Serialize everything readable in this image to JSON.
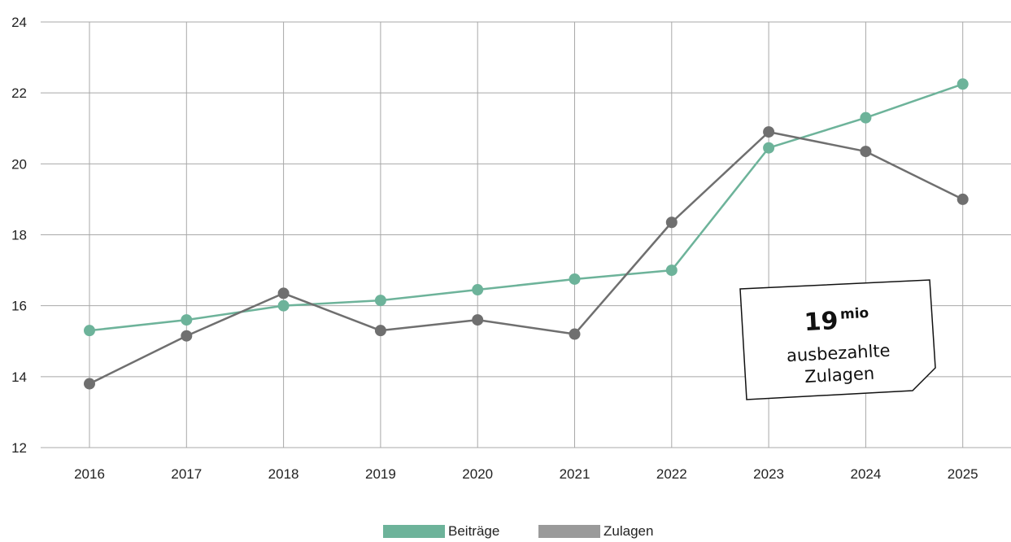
{
  "chart_data": {
    "type": "line",
    "title": "",
    "xlabel": "",
    "ylabel": "",
    "categories": [
      "2016",
      "2017",
      "2018",
      "2019",
      "2020",
      "2021",
      "2022",
      "2023",
      "2024",
      "2025"
    ],
    "ylim": [
      12,
      24
    ],
    "yticks": [
      12,
      14,
      16,
      18,
      20,
      22,
      24
    ],
    "grid": true,
    "legend_position": "bottom",
    "series": [
      {
        "name": "Beiträge",
        "color": "#6db39a",
        "values": [
          15.3,
          15.6,
          16.0,
          16.15,
          16.45,
          16.75,
          17.0,
          20.45,
          21.3,
          22.25
        ]
      },
      {
        "name": "Zulagen",
        "color": "#6f6f6f",
        "legend_color": "#9a9a9a",
        "values": [
          13.8,
          15.15,
          16.35,
          15.3,
          15.6,
          15.2,
          18.35,
          20.9,
          20.35,
          19.0
        ]
      }
    ],
    "annotation": {
      "number": "19",
      "unit": "mio",
      "line1": "ausbezahlte",
      "line2": "Zulagen"
    }
  }
}
